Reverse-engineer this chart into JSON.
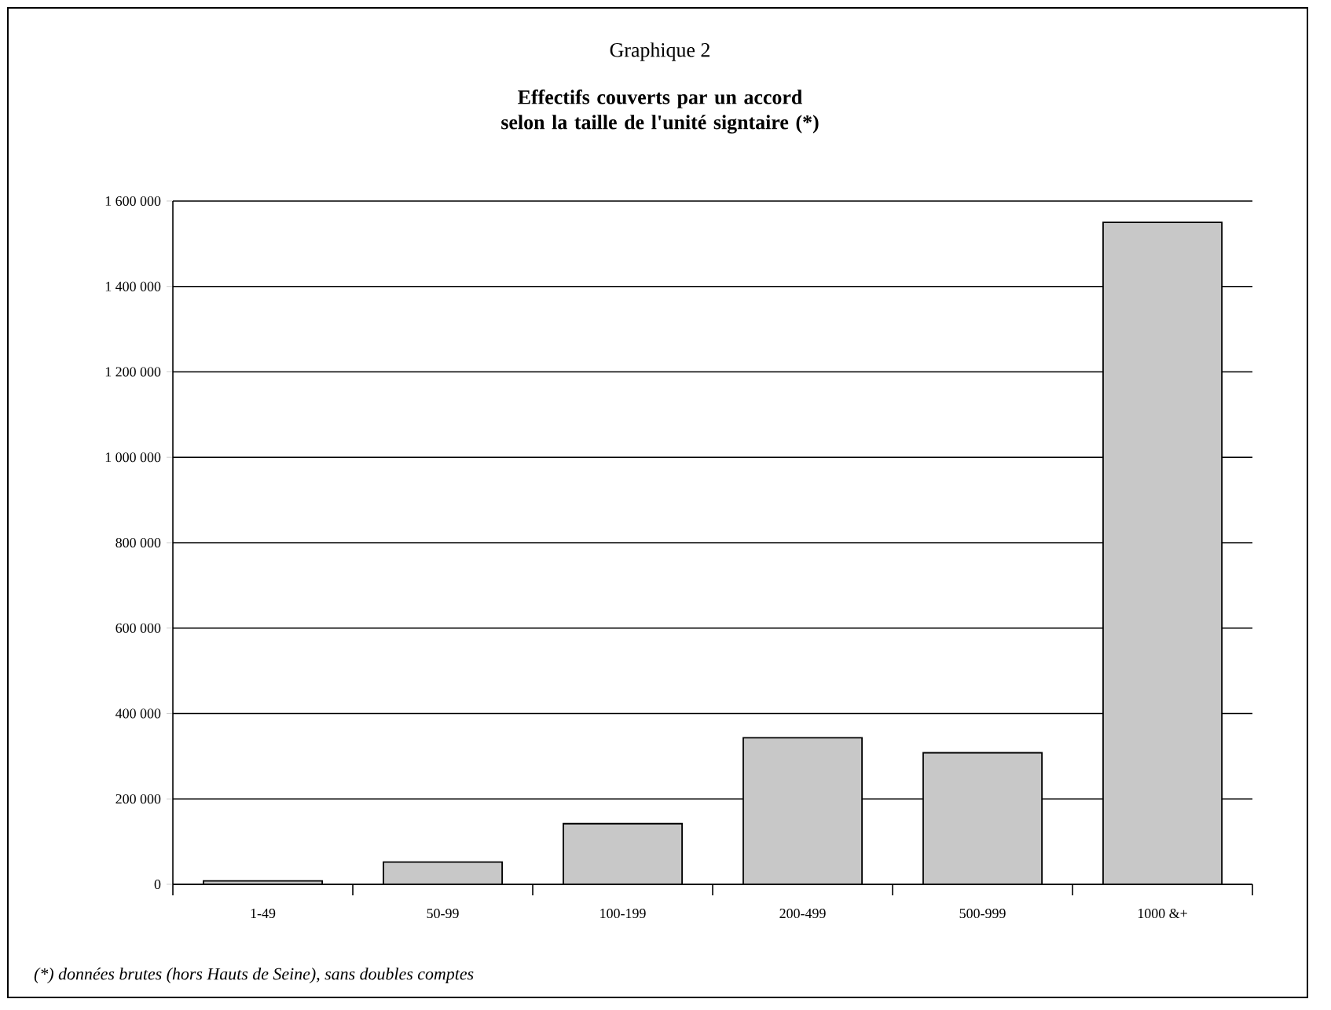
{
  "chart_data": {
    "type": "bar",
    "title": "Graphique 2",
    "subtitle": "**Effectifs couverts par un accord selon la taille de l'unité signtaire (*)**",
    "categories": [
      "1-49",
      "50-99",
      "100-199",
      "200-499",
      "500-999",
      "1000 &+"
    ],
    "values": [
      8000,
      52000,
      142000,
      343000,
      308000,
      1550000
    ],
    "color": "#c8c8c8",
    "ylim": [
      0,
      1600000
    ],
    "yticks": [
      0,
      {
        "value": 200000,
        "label": "200 000"
      },
      {
        "value": 400000,
        "label": "400 000"
      },
      {
        "value": 600000,
        "label": "600 000"
      },
      {
        "value": 800000,
        "label": "800 000"
      },
      {
        "value": 1000000,
        "label": "1 000 000"
      },
      {
        "value": 1200000,
        "label": "1 200 000"
      },
      {
        "value": 1400000,
        "label": "1 400 000"
      },
      {
        "value": 1600000,
        "label": "1 600 000"
      }
    ],
    "grid": "y",
    "annotations": [
      "(*) données brutes (hors Hauts de Seine), sans doubles comptes"
    ]
  }
}
